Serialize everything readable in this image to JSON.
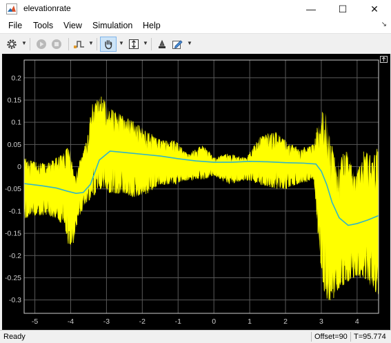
{
  "window": {
    "title": "elevationrate",
    "minimize": "—",
    "maximize": "☐",
    "close": "✕"
  },
  "menu": {
    "items": [
      "File",
      "Tools",
      "View",
      "Simulation",
      "Help"
    ],
    "overflow_arrow": "↘"
  },
  "toolbar": {
    "icons": [
      "gear-icon",
      "run-icon",
      "stop-icon",
      "triggers-icon",
      "pan-icon",
      "zoom-scale-icon",
      "style-icon",
      "edit-icon"
    ],
    "active": "pan-icon"
  },
  "colors": {
    "signal": "#ffff00",
    "trend": "#2fb5c9",
    "grid": "#5a5a5a",
    "axis": "#d0d0d0",
    "background": "#000000"
  },
  "chart_data": {
    "type": "line",
    "title": "",
    "xlabel": "",
    "ylabel": "",
    "xlim": [
      -5.3,
      4.6
    ],
    "ylim": [
      -0.33,
      0.24
    ],
    "xticks": [
      -5,
      -4,
      -3,
      -2,
      -1,
      0,
      1,
      2,
      3,
      4
    ],
    "yticks": [
      -0.3,
      -0.25,
      -0.2,
      -0.15,
      -0.1,
      -0.05,
      0,
      0.05,
      0.1,
      0.15,
      0.2
    ],
    "grid": true,
    "series": [
      {
        "color": "#ffff00",
        "style": "noisy-envelope",
        "x": [
          -5.3,
          -5.0,
          -4.6,
          -4.2,
          -4.05,
          -3.9,
          -3.8,
          -3.55,
          -3.4,
          -3.15,
          -2.9,
          -2.6,
          -2.2,
          -1.85,
          -1.5,
          -1.1,
          -0.7,
          -0.3,
          0.0,
          0.4,
          0.9,
          1.3,
          1.7,
          2.0,
          2.4,
          2.8,
          2.95,
          3.1,
          3.25,
          3.45,
          3.7,
          3.95,
          4.2,
          4.45,
          4.6
        ],
        "upper": [
          0.02,
          0.01,
          0.01,
          0.03,
          0.05,
          -0.02,
          0.0,
          0.06,
          0.14,
          0.16,
          0.13,
          0.12,
          0.1,
          0.08,
          0.06,
          0.06,
          0.03,
          0.05,
          0.02,
          0.03,
          0.02,
          0.07,
          0.08,
          0.06,
          0.04,
          0.05,
          0.12,
          0.13,
          0.06,
          0.01,
          0.04,
          -0.02,
          0.04,
          0.02,
          0.06
        ],
        "lower": [
          -0.12,
          -0.11,
          -0.11,
          -0.13,
          -0.18,
          -0.17,
          -0.12,
          -0.08,
          -0.07,
          -0.05,
          -0.06,
          -0.06,
          -0.07,
          -0.06,
          -0.04,
          -0.04,
          -0.03,
          -0.03,
          -0.02,
          -0.04,
          -0.03,
          -0.04,
          -0.05,
          -0.05,
          -0.04,
          -0.03,
          -0.2,
          -0.29,
          -0.31,
          -0.28,
          -0.26,
          -0.25,
          -0.25,
          -0.28,
          -0.29
        ]
      },
      {
        "color": "#2fb5c9",
        "style": "line",
        "x": [
          -5.3,
          -4.8,
          -4.4,
          -4.1,
          -3.85,
          -3.65,
          -3.45,
          -3.2,
          -2.9,
          -2.5,
          -2.0,
          -1.5,
          -1.0,
          -0.5,
          0.0,
          0.5,
          1.0,
          1.5,
          2.0,
          2.5,
          2.85,
          3.0,
          3.15,
          3.3,
          3.5,
          3.75,
          4.0,
          4.3,
          4.6
        ],
        "values": [
          -0.038,
          -0.043,
          -0.048,
          -0.055,
          -0.06,
          -0.058,
          -0.04,
          0.015,
          0.035,
          0.032,
          0.028,
          0.024,
          0.018,
          0.013,
          0.01,
          0.01,
          0.012,
          0.011,
          0.009,
          0.008,
          0.006,
          -0.01,
          -0.04,
          -0.08,
          -0.115,
          -0.132,
          -0.128,
          -0.12,
          -0.11
        ]
      }
    ]
  },
  "status": {
    "ready": "Ready",
    "offset": "Offset=90",
    "time": "T=95.774"
  }
}
